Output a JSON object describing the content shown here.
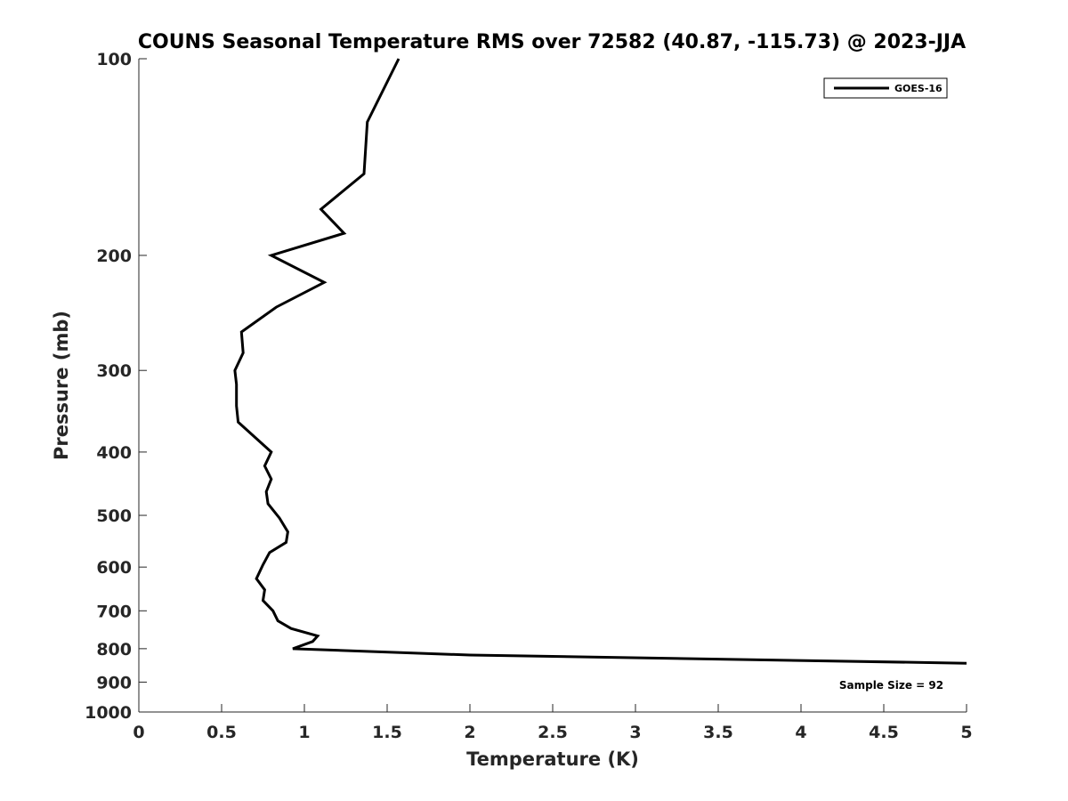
{
  "chart_data": {
    "type": "line",
    "title": "COUNS Seasonal Temperature RMS over 72582 (40.87, -115.73) @ 2023-JJA",
    "xlabel": "Temperature (K)",
    "ylabel": "Pressure (mb)",
    "xlim": [
      0,
      5
    ],
    "ylim": [
      1000,
      100
    ],
    "y_scale": "log",
    "x_ticks": [
      0,
      0.5,
      1,
      1.5,
      2,
      2.5,
      3,
      3.5,
      4,
      4.5,
      5
    ],
    "x_tick_labels": [
      "0",
      "0.5",
      "1",
      "1.5",
      "2",
      "2.5",
      "3",
      "3.5",
      "4",
      "4.5",
      "5"
    ],
    "y_ticks": [
      100,
      200,
      300,
      400,
      500,
      600,
      700,
      800,
      900,
      1000
    ],
    "y_tick_labels": [
      "100",
      "200",
      "300",
      "400",
      "500",
      "600",
      "700",
      "800",
      "900",
      "1000"
    ],
    "grid": false,
    "legend_position": "top-right",
    "series": [
      {
        "name": "GOES-16",
        "color": "#000000",
        "points": [
          {
            "x": 1.57,
            "y": 100
          },
          {
            "x": 1.38,
            "y": 125
          },
          {
            "x": 1.36,
            "y": 150
          },
          {
            "x": 1.1,
            "y": 170
          },
          {
            "x": 1.24,
            "y": 185
          },
          {
            "x": 0.8,
            "y": 200
          },
          {
            "x": 1.12,
            "y": 220
          },
          {
            "x": 0.83,
            "y": 240
          },
          {
            "x": 0.62,
            "y": 262
          },
          {
            "x": 0.63,
            "y": 282
          },
          {
            "x": 0.58,
            "y": 300
          },
          {
            "x": 0.59,
            "y": 315
          },
          {
            "x": 0.59,
            "y": 340
          },
          {
            "x": 0.6,
            "y": 360
          },
          {
            "x": 0.8,
            "y": 400
          },
          {
            "x": 0.76,
            "y": 420
          },
          {
            "x": 0.8,
            "y": 440
          },
          {
            "x": 0.77,
            "y": 460
          },
          {
            "x": 0.78,
            "y": 480
          },
          {
            "x": 0.85,
            "y": 505
          },
          {
            "x": 0.9,
            "y": 530
          },
          {
            "x": 0.89,
            "y": 550
          },
          {
            "x": 0.79,
            "y": 570
          },
          {
            "x": 0.75,
            "y": 595
          },
          {
            "x": 0.71,
            "y": 625
          },
          {
            "x": 0.76,
            "y": 650
          },
          {
            "x": 0.75,
            "y": 675
          },
          {
            "x": 0.81,
            "y": 700
          },
          {
            "x": 0.84,
            "y": 725
          },
          {
            "x": 0.92,
            "y": 745
          },
          {
            "x": 1.08,
            "y": 765
          },
          {
            "x": 1.05,
            "y": 780
          },
          {
            "x": 0.93,
            "y": 800
          },
          {
            "x": 2.0,
            "y": 818
          },
          {
            "x": 5.0,
            "y": 842
          }
        ]
      }
    ],
    "annotations": [
      {
        "text": "Sample Size = 92",
        "x": 4.75,
        "y": 910
      }
    ]
  }
}
